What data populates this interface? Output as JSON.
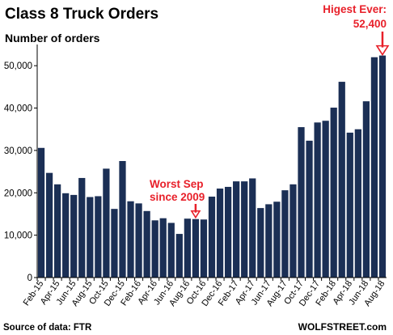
{
  "chart_data": {
    "type": "bar",
    "title": "Class 8 Truck Orders",
    "ylabel": "Number of orders",
    "ylim": [
      0,
      55000
    ],
    "yticks": [
      "0",
      "10,000",
      "20,000",
      "30,000",
      "40,000",
      "50,000"
    ],
    "ytick_values": [
      0,
      10000,
      20000,
      30000,
      40000,
      50000
    ],
    "categories": [
      "Feb-15",
      "Mar-15",
      "Apr-15",
      "May-15",
      "Jun-15",
      "Jul-15",
      "Aug-15",
      "Sep-15",
      "Oct-15",
      "Nov-15",
      "Dec-15",
      "Jan-16",
      "Feb-16",
      "Mar-16",
      "Apr-16",
      "May-16",
      "Jun-16",
      "Jul-16",
      "Aug-16",
      "Sep-16",
      "Oct-16",
      "Nov-16",
      "Dec-16",
      "Jan-17",
      "Feb-17",
      "Mar-17",
      "Apr-17",
      "May-17",
      "Jun-17",
      "Jul-17",
      "Aug-17",
      "Sep-17",
      "Oct-17",
      "Nov-17",
      "Dec-17",
      "Jan-18",
      "Feb-18",
      "Mar-18",
      "Apr-18",
      "May-18",
      "Jun-18",
      "Jul-18",
      "Aug-18"
    ],
    "values": [
      30600,
      24700,
      22000,
      19900,
      19500,
      23500,
      19000,
      19200,
      25700,
      16200,
      27500,
      18000,
      17500,
      15700,
      13500,
      14000,
      12900,
      10300,
      13900,
      13800,
      13700,
      19100,
      21000,
      21400,
      22700,
      22700,
      23400,
      16400,
      17300,
      17900,
      20600,
      22000,
      35500,
      32300,
      36600,
      37000,
      40100,
      46200,
      34200,
      35000,
      41600,
      52000,
      52400
    ],
    "x_tick_labels": [
      "Feb-15",
      "Apr-15",
      "Jun-15",
      "Aug-15",
      "Oct-15",
      "Dec-15",
      "Feb-16",
      "Apr-16",
      "Jun-16",
      "Aug-16",
      "Oct-16",
      "Dec-16",
      "Feb-17",
      "Apr-17",
      "Jun-17",
      "Aug-17",
      "Oct-17",
      "Dec-17",
      "Feb-18",
      "Apr-18",
      "Jun-18",
      "Aug-18"
    ],
    "bar_color": "#1b2f55",
    "annotations": [
      {
        "lines": [
          "Worst Sep",
          "since 2009"
        ],
        "target_category": "Sep-16",
        "color": "#e8202a"
      },
      {
        "lines": [
          "Higest Ever:",
          "52,400"
        ],
        "target_category": "Aug-18",
        "color": "#e8202a"
      }
    ],
    "grid": false,
    "legend": "none"
  },
  "footer": {
    "source": "Source of data: FTR",
    "brand": "WOLFSTREET.com"
  }
}
